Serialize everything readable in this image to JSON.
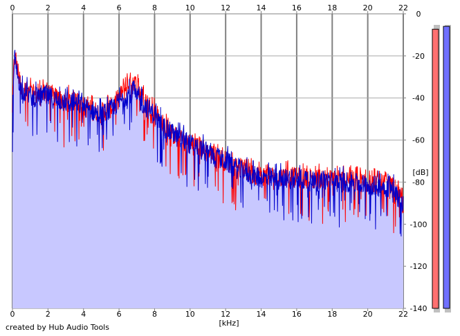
{
  "credit": "created by Hub Audio Tools",
  "chart_data": {
    "type": "line",
    "xlabel": "[kHz]",
    "ylabel": "[dB]",
    "xlim": [
      0,
      22
    ],
    "ylim": [
      -140,
      0
    ],
    "x_ticks": [
      0,
      2,
      4,
      6,
      8,
      10,
      12,
      14,
      16,
      18,
      20,
      22
    ],
    "y_ticks": [
      0,
      -20,
      -40,
      -60,
      -80,
      -100,
      -120,
      -140
    ],
    "y_tick_labels": [
      "0",
      "-20",
      "-40",
      "-60",
      "-80",
      "-100",
      "-120",
      "-140"
    ],
    "grid": true,
    "fill_color": "#c8c8ff",
    "series": [
      {
        "color": "#ff0000",
        "x": [
          0,
          0.1,
          0.5,
          1,
          1.5,
          2,
          2.5,
          3,
          3.5,
          4,
          4.5,
          5,
          5.5,
          6,
          6.5,
          6.8,
          7,
          7.5,
          8,
          8.5,
          9,
          9.5,
          10,
          10.5,
          11,
          11.5,
          12,
          12.5,
          13,
          13.5,
          14,
          14.5,
          15,
          15.5,
          16,
          16.5,
          17,
          17.5,
          18,
          18.5,
          19,
          19.5,
          20,
          20.5,
          21,
          21.5,
          22
        ],
        "values": [
          -45,
          -20,
          -35,
          -38,
          -39,
          -38,
          -40,
          -42,
          -41,
          -44,
          -46,
          -47,
          -45,
          -40,
          -34,
          -31,
          -35,
          -41,
          -47,
          -53,
          -57,
          -60,
          -62,
          -63,
          -66,
          -68,
          -70,
          -72,
          -74,
          -76,
          -77,
          -77,
          -78,
          -77,
          -78,
          -78,
          -79,
          -78,
          -79,
          -79,
          -79,
          -80,
          -80,
          -81,
          -81,
          -83,
          -91
        ]
      },
      {
        "color": "#0000cc",
        "x": [
          0,
          0.1,
          0.5,
          1,
          1.5,
          2,
          2.5,
          3,
          3.5,
          4,
          4.5,
          5,
          5.5,
          6,
          6.5,
          6.8,
          7,
          7.5,
          8,
          8.5,
          9,
          9.5,
          10,
          10.5,
          11,
          11.5,
          12,
          12.5,
          13,
          13.5,
          14,
          14.5,
          15,
          15.5,
          16,
          16.5,
          17,
          17.5,
          18,
          18.5,
          19,
          19.5,
          20,
          20.5,
          21,
          21.5,
          22
        ],
        "values": [
          -48,
          -22,
          -36,
          -39,
          -40,
          -39,
          -41,
          -42,
          -42,
          -44,
          -46,
          -48,
          -46,
          -42,
          -38,
          -37,
          -40,
          -44,
          -48,
          -54,
          -57,
          -60,
          -62,
          -64,
          -66,
          -69,
          -70,
          -73,
          -75,
          -77,
          -78,
          -78,
          -79,
          -78,
          -79,
          -79,
          -80,
          -79,
          -80,
          -80,
          -80,
          -81,
          -81,
          -82,
          -82,
          -84,
          -92
        ]
      }
    ]
  },
  "meters": [
    {
      "name": "left-channel-meter",
      "color": "#ff7070",
      "level": 0.98
    },
    {
      "name": "right-channel-meter",
      "color": "#7070ff",
      "level": 0.99
    }
  ]
}
